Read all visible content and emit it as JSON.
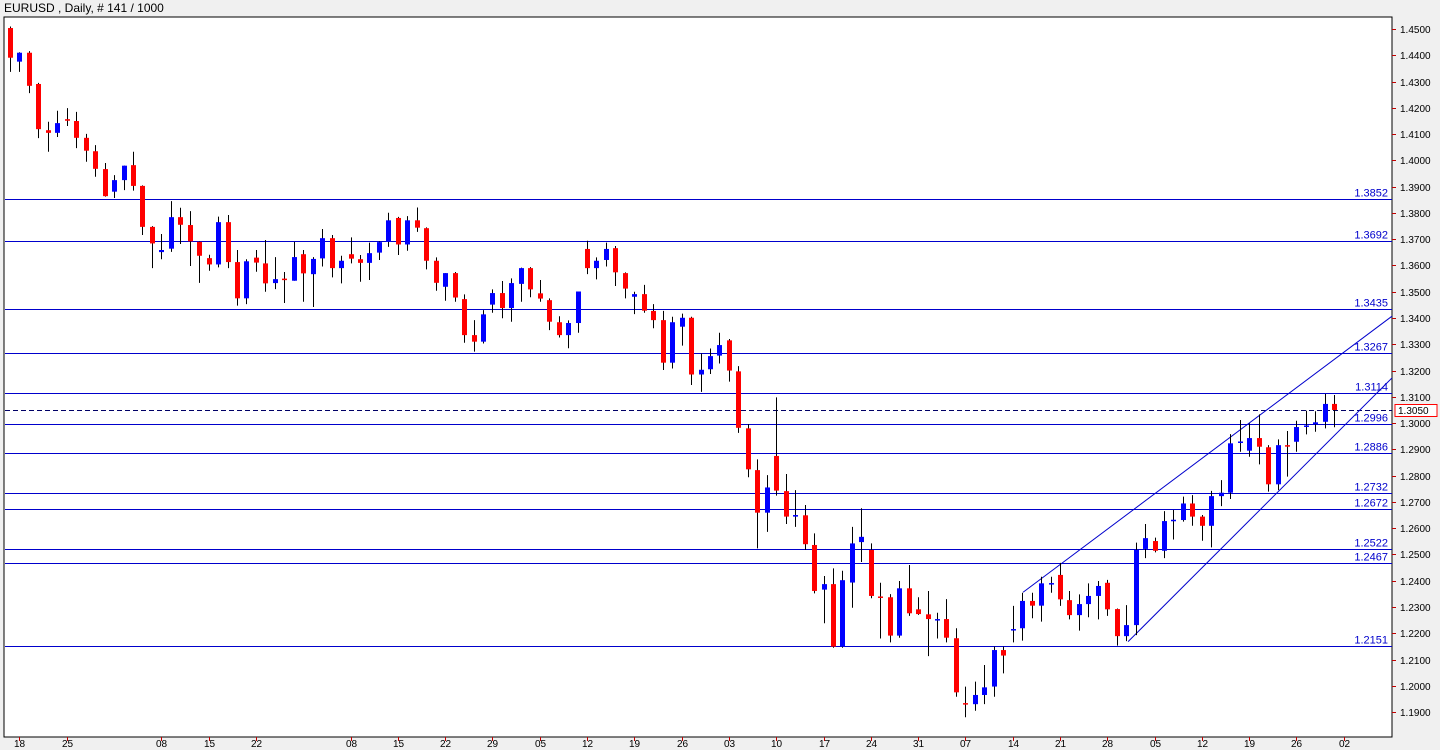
{
  "header": {
    "title": "EURUSD , Daily, # 141 / 1000"
  },
  "chart_data": {
    "type": "candlestick",
    "symbol": "EURUSD",
    "timeframe": "Daily",
    "bar_count": "141 / 1000",
    "fields": [
      "open",
      "high",
      "low",
      "close"
    ],
    "ylim": [
      1.1805,
      1.4546
    ],
    "xlim": [
      0.47,
      147.1
    ],
    "y_ticks": [
      "1.4500",
      "1.4400",
      "1.4300",
      "1.4200",
      "1.4100",
      "1.4000",
      "1.3900",
      "1.3800",
      "1.3700",
      "1.3600",
      "1.3500",
      "1.3400",
      "1.3300",
      "1.3200",
      "1.3100",
      "1.3000",
      "1.2900",
      "1.2800",
      "1.2700",
      "1.2600",
      "1.2500",
      "1.2400",
      "1.2300",
      "1.2200",
      "1.2100",
      "1.2000",
      "1.1900"
    ],
    "x_ticks": [
      {
        "bar": 2,
        "label": "18"
      },
      {
        "bar": 7,
        "label": "25"
      },
      {
        "bar": 17,
        "label": "08"
      },
      {
        "bar": 22,
        "label": "15"
      },
      {
        "bar": 27,
        "label": "22"
      },
      {
        "bar": 37,
        "label": "08"
      },
      {
        "bar": 42,
        "label": "15"
      },
      {
        "bar": 47,
        "label": "22"
      },
      {
        "bar": 52,
        "label": "29"
      },
      {
        "bar": 57,
        "label": "05"
      },
      {
        "bar": 62,
        "label": "12"
      },
      {
        "bar": 67,
        "label": "19"
      },
      {
        "bar": 72,
        "label": "26"
      },
      {
        "bar": 77,
        "label": "03"
      },
      {
        "bar": 82,
        "label": "10"
      },
      {
        "bar": 87,
        "label": "17"
      },
      {
        "bar": 92,
        "label": "24"
      },
      {
        "bar": 97,
        "label": "31"
      },
      {
        "bar": 102,
        "label": "07"
      },
      {
        "bar": 107,
        "label": "14"
      },
      {
        "bar": 112,
        "label": "21"
      },
      {
        "bar": 117,
        "label": "28"
      },
      {
        "bar": 122,
        "label": "05"
      },
      {
        "bar": 127,
        "label": "12"
      },
      {
        "bar": 132,
        "label": "19"
      },
      {
        "bar": 137,
        "label": "26"
      },
      {
        "bar": 142,
        "label": "02"
      }
    ],
    "levels": [
      "1.3852",
      "1.3692",
      "1.3435",
      "1.3267",
      "1.3114",
      "1.2996",
      "1.2886",
      "1.2732",
      "1.2672",
      "1.2522",
      "1.2467",
      "1.2151"
    ],
    "bid": "1.3050",
    "trendlines": [
      {
        "from": [
          108.1,
          1.2356
        ],
        "to": [
          147.1,
          1.3407
        ]
      },
      {
        "from": [
          119.2,
          1.2168
        ],
        "to": [
          147.1,
          1.3172
        ]
      }
    ],
    "colors": {
      "bull": "#0000ff",
      "bear": "#ff0000",
      "wick": "#000000",
      "level": "#0000cc",
      "bid_box": "#ff0000",
      "tick": "#c00000"
    },
    "candles": [
      [
        1.4504,
        1.451,
        1.4337,
        1.4391
      ],
      [
        1.4376,
        1.4412,
        1.4337,
        1.441
      ],
      [
        1.441,
        1.4416,
        1.4256,
        1.4284
      ],
      [
        1.4291,
        1.4295,
        1.4085,
        1.4119
      ],
      [
        1.4115,
        1.4147,
        1.4033,
        1.4105
      ],
      [
        1.4105,
        1.4189,
        1.4089,
        1.4142
      ],
      [
        1.4157,
        1.4199,
        1.4131,
        1.4151
      ],
      [
        1.415,
        1.4185,
        1.4047,
        1.4086
      ],
      [
        1.4086,
        1.4101,
        1.3995,
        1.4037
      ],
      [
        1.4035,
        1.4058,
        1.3938,
        1.3968
      ],
      [
        1.3967,
        1.399,
        1.3862,
        1.3864
      ],
      [
        1.3881,
        1.3944,
        1.3857,
        1.3925
      ],
      [
        1.3925,
        1.398,
        1.3887,
        1.398
      ],
      [
        1.3982,
        1.4033,
        1.3885,
        1.3903
      ],
      [
        1.3903,
        1.3905,
        1.3716,
        1.3747
      ],
      [
        1.3747,
        1.375,
        1.359,
        1.3684
      ],
      [
        1.3651,
        1.372,
        1.3624,
        1.3659
      ],
      [
        1.3664,
        1.3845,
        1.3652,
        1.3784
      ],
      [
        1.3784,
        1.382,
        1.3682,
        1.3755
      ],
      [
        1.3754,
        1.3807,
        1.3598,
        1.3692
      ],
      [
        1.369,
        1.3692,
        1.3534,
        1.3637
      ],
      [
        1.3628,
        1.3641,
        1.358,
        1.3604
      ],
      [
        1.3604,
        1.3786,
        1.3593,
        1.3765
      ],
      [
        1.3765,
        1.3792,
        1.359,
        1.3613
      ],
      [
        1.3613,
        1.3659,
        1.3447,
        1.3475
      ],
      [
        1.3475,
        1.3624,
        1.3453,
        1.3616
      ],
      [
        1.363,
        1.3659,
        1.3576,
        1.3611
      ],
      [
        1.3608,
        1.3697,
        1.35,
        1.3532
      ],
      [
        1.3533,
        1.3632,
        1.351,
        1.3548
      ],
      [
        1.355,
        1.3575,
        1.3457,
        1.3545
      ],
      [
        1.3542,
        1.369,
        1.3542,
        1.3632
      ],
      [
        1.3643,
        1.3659,
        1.3462,
        1.357
      ],
      [
        1.3567,
        1.3632,
        1.3442,
        1.3625
      ],
      [
        1.3627,
        1.3739,
        1.3596,
        1.3704
      ],
      [
        1.3704,
        1.3716,
        1.3555,
        1.359
      ],
      [
        1.359,
        1.3637,
        1.3532,
        1.3618
      ],
      [
        1.3643,
        1.3707,
        1.3608,
        1.3626
      ],
      [
        1.3624,
        1.364,
        1.3538,
        1.361
      ],
      [
        1.361,
        1.3687,
        1.3545,
        1.3647
      ],
      [
        1.3649,
        1.3692,
        1.3621,
        1.3689
      ],
      [
        1.369,
        1.3801,
        1.3671,
        1.3772
      ],
      [
        1.3781,
        1.3785,
        1.364,
        1.368
      ],
      [
        1.368,
        1.3788,
        1.3656,
        1.3772
      ],
      [
        1.3772,
        1.3821,
        1.3728,
        1.3744
      ],
      [
        1.3742,
        1.3745,
        1.3585,
        1.3618
      ],
      [
        1.3618,
        1.3631,
        1.3504,
        1.3534
      ],
      [
        1.3519,
        1.3571,
        1.3466,
        1.3571
      ],
      [
        1.3571,
        1.3575,
        1.3462,
        1.3478
      ],
      [
        1.3472,
        1.349,
        1.3306,
        1.3335
      ],
      [
        1.3335,
        1.3392,
        1.3272,
        1.331
      ],
      [
        1.331,
        1.343,
        1.3303,
        1.3414
      ],
      [
        1.3451,
        1.3509,
        1.342,
        1.3495
      ],
      [
        1.3495,
        1.3541,
        1.3399,
        1.3438
      ],
      [
        1.3438,
        1.3551,
        1.3386,
        1.3533
      ],
      [
        1.353,
        1.3592,
        1.3462,
        1.359
      ],
      [
        1.359,
        1.3594,
        1.3479,
        1.3509
      ],
      [
        1.3494,
        1.3545,
        1.3462,
        1.3474
      ],
      [
        1.3468,
        1.3475,
        1.3354,
        1.3386
      ],
      [
        1.3384,
        1.3407,
        1.3326,
        1.3335
      ],
      [
        1.3335,
        1.3391,
        1.3285,
        1.3381
      ],
      [
        1.3381,
        1.3501,
        1.3344,
        1.3501
      ],
      [
        1.3663,
        1.3694,
        1.3567,
        1.359
      ],
      [
        1.359,
        1.3631,
        1.3547,
        1.3618
      ],
      [
        1.3621,
        1.3687,
        1.3596,
        1.3663
      ],
      [
        1.3666,
        1.3674,
        1.3522,
        1.3574
      ],
      [
        1.3571,
        1.3574,
        1.3475,
        1.3512
      ],
      [
        1.3481,
        1.35,
        1.3415,
        1.3491
      ],
      [
        1.3491,
        1.3526,
        1.342,
        1.3428
      ],
      [
        1.3427,
        1.3453,
        1.3361,
        1.3392
      ],
      [
        1.3392,
        1.3427,
        1.3202,
        1.323
      ],
      [
        1.323,
        1.3405,
        1.3208,
        1.3384
      ],
      [
        1.3367,
        1.3417,
        1.3295,
        1.3401
      ],
      [
        1.3401,
        1.3405,
        1.3145,
        1.3185
      ],
      [
        1.3185,
        1.3265,
        1.3119,
        1.3203
      ],
      [
        1.3205,
        1.3284,
        1.3187,
        1.3255
      ],
      [
        1.3257,
        1.3344,
        1.3227,
        1.3297
      ],
      [
        1.3315,
        1.332,
        1.3158,
        1.32
      ],
      [
        1.3197,
        1.3217,
        1.2963,
        1.2982
      ],
      [
        1.298,
        1.2996,
        1.2794,
        1.2824
      ],
      [
        1.2821,
        1.2862,
        1.2523,
        1.2659
      ],
      [
        1.2659,
        1.2802,
        1.2586,
        1.2755
      ],
      [
        1.2875,
        1.3098,
        1.2724,
        1.2743
      ],
      [
        1.2741,
        1.2806,
        1.2616,
        1.2644
      ],
      [
        1.2644,
        1.2745,
        1.2605,
        1.265
      ],
      [
        1.2649,
        1.2688,
        1.2517,
        1.2539
      ],
      [
        1.2536,
        1.258,
        1.2352,
        1.2361
      ],
      [
        1.2366,
        1.2418,
        1.2238,
        1.2387
      ],
      [
        1.2387,
        1.2447,
        1.2145,
        1.2149
      ],
      [
        1.2149,
        1.2438,
        1.2145,
        1.2402
      ],
      [
        1.2393,
        1.2605,
        1.2297,
        1.2542
      ],
      [
        1.2547,
        1.2676,
        1.2471,
        1.2567
      ],
      [
        1.2517,
        1.2542,
        1.2333,
        1.2342
      ],
      [
        1.234,
        1.2392,
        1.218,
        1.2339
      ],
      [
        1.2337,
        1.2349,
        1.2165,
        1.2191
      ],
      [
        1.2191,
        1.2399,
        1.2183,
        1.2371
      ],
      [
        1.2371,
        1.246,
        1.2266,
        1.2276
      ],
      [
        1.2291,
        1.2337,
        1.227,
        1.2273
      ],
      [
        1.2272,
        1.2361,
        1.2113,
        1.2254
      ],
      [
        1.2252,
        1.2278,
        1.218,
        1.2254
      ],
      [
        1.2254,
        1.233,
        1.2165,
        1.2183
      ],
      [
        1.2181,
        1.2219,
        1.1958,
        1.1975
      ],
      [
        1.1934,
        1.1997,
        1.188,
        1.1932
      ],
      [
        1.193,
        1.2016,
        1.1905,
        1.1965
      ],
      [
        1.1965,
        1.2079,
        1.193,
        1.1994
      ],
      [
        1.1997,
        1.2149,
        1.1958,
        1.2136
      ],
      [
        1.2136,
        1.2149,
        1.2047,
        1.2115
      ],
      [
        1.2213,
        1.2304,
        1.2165,
        1.2216
      ],
      [
        1.2219,
        1.2354,
        1.2172,
        1.2323
      ],
      [
        1.2323,
        1.2354,
        1.2257,
        1.2305
      ],
      [
        1.2305,
        1.2415,
        1.2244,
        1.239
      ],
      [
        1.2389,
        1.2415,
        1.2354,
        1.2391
      ],
      [
        1.2422,
        1.2468,
        1.2304,
        1.2329
      ],
      [
        1.2326,
        1.2361,
        1.2253,
        1.2269
      ],
      [
        1.2269,
        1.2348,
        1.221,
        1.2311
      ],
      [
        1.2311,
        1.239,
        1.2261,
        1.2342
      ],
      [
        1.2342,
        1.2399,
        1.2253,
        1.238
      ],
      [
        1.2392,
        1.2403,
        1.2266,
        1.2291
      ],
      [
        1.2292,
        1.2294,
        1.2153,
        1.2189
      ],
      [
        1.2189,
        1.2307,
        1.217,
        1.2231
      ],
      [
        1.2231,
        1.2545,
        1.2193,
        1.2517
      ],
      [
        1.2521,
        1.2616,
        1.2486,
        1.2562
      ],
      [
        1.2551,
        1.2564,
        1.2508,
        1.2514
      ],
      [
        1.2514,
        1.2665,
        1.2486,
        1.2627
      ],
      [
        1.263,
        1.2669,
        1.2557,
        1.2632
      ],
      [
        1.2631,
        1.272,
        1.2625,
        1.2694
      ],
      [
        1.2694,
        1.2726,
        1.2609,
        1.2644
      ],
      [
        1.2644,
        1.265,
        1.2552,
        1.2609
      ],
      [
        1.2609,
        1.2742,
        1.2527,
        1.2722
      ],
      [
        1.2722,
        1.2783,
        1.2684,
        1.2735
      ],
      [
        1.2735,
        1.2958,
        1.2711,
        1.2923
      ],
      [
        1.2928,
        1.3012,
        1.2891,
        1.293
      ],
      [
        1.2895,
        1.2999,
        1.2872,
        1.2943
      ],
      [
        1.2943,
        1.3033,
        1.2843,
        1.291
      ],
      [
        1.2908,
        1.2916,
        1.2739,
        1.2767
      ],
      [
        1.2767,
        1.2938,
        1.2745,
        1.2916
      ],
      [
        1.2916,
        1.297,
        1.2796,
        1.2914
      ],
      [
        1.2929,
        1.3009,
        1.2891,
        1.2985
      ],
      [
        1.2989,
        1.3047,
        1.2957,
        1.2991
      ],
      [
        1.2996,
        1.3045,
        1.2967,
        1.3003
      ],
      [
        1.3005,
        1.3111,
        1.298,
        1.3073
      ],
      [
        1.3073,
        1.3107,
        1.2984,
        1.305
      ]
    ]
  }
}
